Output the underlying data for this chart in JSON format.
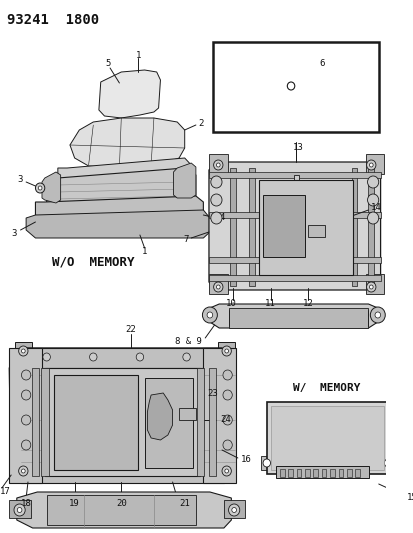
{
  "title": "93241  1800",
  "wo_memory": "W/O  MEMORY",
  "w_memory": "W/  MEMORY",
  "bg": "#ffffff",
  "lc": "#1a1a1a",
  "fig_w": 4.14,
  "fig_h": 5.33,
  "dpi": 100
}
